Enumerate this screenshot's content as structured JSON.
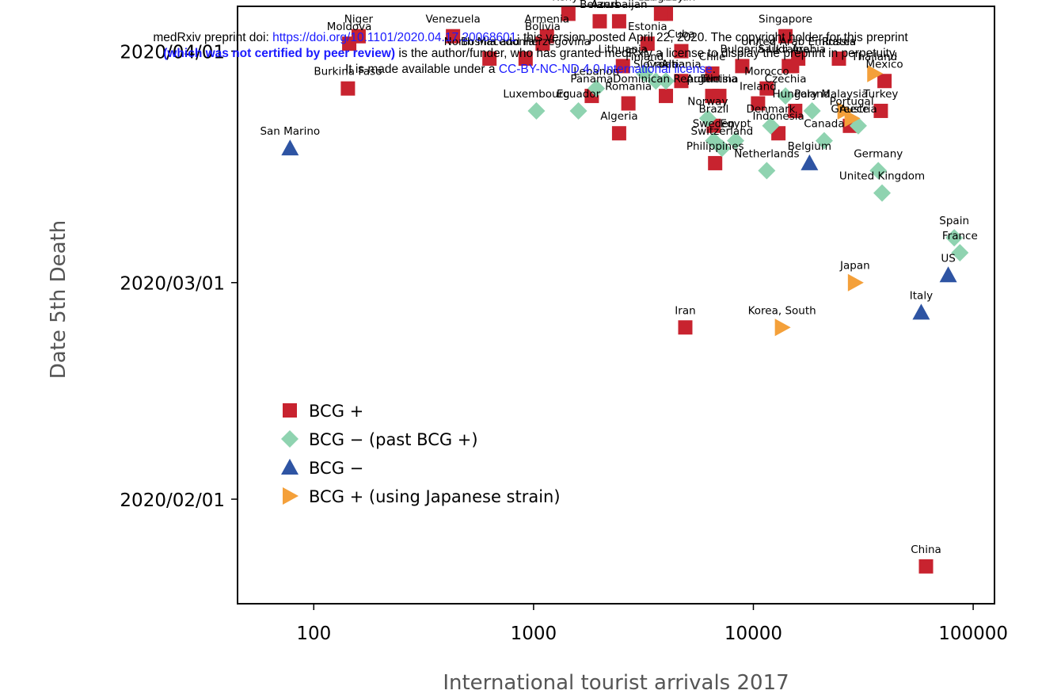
{
  "preprint": {
    "line1_prefix": "medRxiv preprint doi: ",
    "doi_link": "https://doi.org/10.1101/2020.04.17.20068601",
    "line1_suffix": "; this version posted April 22, 2020. The copyright holder for this preprint",
    "line2_bold": "(which was not certified by peer review)",
    "line2_suffix": " is the author/funder, who has granted medRxiv a license to display the preprint in perpetuity.",
    "line3_prefix": "It is made available under a ",
    "license_link": "CC-BY-NC-ND 4.0 International license",
    "line3_suffix": "."
  },
  "chart_data": {
    "type": "scatter",
    "xlabel": "International tourist arrivals 2017",
    "ylabel": "Date 5th Death",
    "xscale": "log",
    "xlim": [
      45,
      125000
    ],
    "ylim": [
      "2020-01-18",
      "2020-04-07"
    ],
    "xticks": [
      100,
      1000,
      10000,
      100000
    ],
    "xtick_labels": [
      "100",
      "1000",
      "10000",
      "100000"
    ],
    "yticks": [
      "2020-02-01",
      "2020-03-01",
      "2020-04-01"
    ],
    "ytick_labels": [
      "2020/02/01",
      "2020/03/01",
      "2020/04/01"
    ],
    "legend_position": "bottom-left",
    "series": [
      {
        "name": "BCG +",
        "marker": "square",
        "color": "#c8232f",
        "points": [
          {
            "label": "Burkina Faso",
            "x": 143,
            "y": "2020-03-27"
          },
          {
            "label": "Moldova",
            "x": 145,
            "y": "2020-04-02"
          },
          {
            "label": "Niger",
            "x": 160,
            "y": "2020-04-03"
          },
          {
            "label": "Venezuela",
            "x": 430,
            "y": "2020-04-03"
          },
          {
            "label": "North Macedonia",
            "x": 630,
            "y": "2020-03-31"
          },
          {
            "label": "Bosnia and Herzegovina",
            "x": 920,
            "y": "2020-03-31"
          },
          {
            "label": "Armenia",
            "x": 1150,
            "y": "2020-04-03"
          },
          {
            "label": "Bolivia",
            "x": 1100,
            "y": "2020-04-02"
          },
          {
            "label": "Kenya",
            "x": 1440,
            "y": "2020-04-06"
          },
          {
            "label": "Panama",
            "x": 1840,
            "y": "2020-03-26"
          },
          {
            "label": "Belarus",
            "x": 2000,
            "y": "2020-04-05"
          },
          {
            "label": "Azerbaijan",
            "x": 2450,
            "y": "2020-04-05"
          },
          {
            "label": "Algeria",
            "x": 2450,
            "y": "2020-03-21"
          },
          {
            "label": "Lithuania",
            "x": 2550,
            "y": "2020-03-30"
          },
          {
            "label": "Romania",
            "x": 2700,
            "y": "2020-03-25"
          },
          {
            "label": "Estonia",
            "x": 3300,
            "y": "2020-04-02"
          },
          {
            "label": "Dominican Republic",
            "x": 4000,
            "y": "2020-03-26"
          },
          {
            "label": "Uzbekistan",
            "x": 4000,
            "y": "2020-04-06"
          },
          {
            "label": "Uruguay",
            "x": 3800,
            "y": "2020-04-06"
          },
          {
            "label": "Cuba",
            "x": 4700,
            "y": "2020-04-01"
          },
          {
            "label": "Albania",
            "x": 4700,
            "y": "2020-03-28"
          },
          {
            "label": "Iran",
            "x": 4900,
            "y": "2020-02-24"
          },
          {
            "label": "Argentina",
            "x": 6500,
            "y": "2020-03-26"
          },
          {
            "label": "Tunisia",
            "x": 7000,
            "y": "2020-03-26"
          },
          {
            "label": "Chile",
            "x": 6500,
            "y": "2020-03-29"
          },
          {
            "label": "Brazil",
            "x": 6600,
            "y": "2020-03-22"
          },
          {
            "label": "Philippines",
            "x": 6700,
            "y": "2020-03-17"
          },
          {
            "label": "Bulgaria",
            "x": 8900,
            "y": "2020-03-30"
          },
          {
            "label": "Ireland",
            "x": 10500,
            "y": "2020-03-25"
          },
          {
            "label": "Morocco",
            "x": 11500,
            "y": "2020-03-27"
          },
          {
            "label": "Ukraine",
            "x": 14500,
            "y": "2020-03-30"
          },
          {
            "label": "Indonesia",
            "x": 13000,
            "y": "2020-03-21"
          },
          {
            "label": "Hungary",
            "x": 15500,
            "y": "2020-03-24"
          },
          {
            "label": "Singapore",
            "x": 14000,
            "y": "2020-04-03"
          },
          {
            "label": "United Arab Emirates",
            "x": 16000,
            "y": "2020-03-31"
          },
          {
            "label": "Saudi Arabia",
            "x": 15000,
            "y": "2020-03-30"
          },
          {
            "label": "Russia",
            "x": 24500,
            "y": "2020-03-31"
          },
          {
            "label": "Greece",
            "x": 27500,
            "y": "2020-03-22"
          },
          {
            "label": "Mexico",
            "x": 39500,
            "y": "2020-03-28"
          },
          {
            "label": "Turkey",
            "x": 38000,
            "y": "2020-03-24"
          },
          {
            "label": "China",
            "x": 61000,
            "y": "2020-01-23"
          }
        ]
      },
      {
        "name": "BCG − (past BCG +)",
        "marker": "diamond",
        "color": "#8fd3b0",
        "points": [
          {
            "label": "Luxembourg",
            "x": 1030,
            "y": "2020-03-24"
          },
          {
            "label": "Ecuador",
            "x": 1600,
            "y": "2020-03-24"
          },
          {
            "label": "Lebanon",
            "x": 1930,
            "y": "2020-03-27"
          },
          {
            "label": "Finland",
            "x": 3200,
            "y": "2020-03-29"
          },
          {
            "label": "Slovakia",
            "x": 3600,
            "y": "2020-03-28"
          },
          {
            "label": "Croatia",
            "x": 4000,
            "y": "2020-03-28"
          },
          {
            "label": "Norway",
            "x": 6200,
            "y": "2020-03-23"
          },
          {
            "label": "Sweden",
            "x": 6600,
            "y": "2020-03-20"
          },
          {
            "label": "Switzerland",
            "x": 7200,
            "y": "2020-03-19"
          },
          {
            "label": "Egypt",
            "x": 8300,
            "y": "2020-03-20"
          },
          {
            "label": "Denmark",
            "x": 12000,
            "y": "2020-03-22"
          },
          {
            "label": "Czechia",
            "x": 14000,
            "y": "2020-03-26"
          },
          {
            "label": "Netherlands",
            "x": 11500,
            "y": "2020-03-16"
          },
          {
            "label": "Canada",
            "x": 21000,
            "y": "2020-03-20"
          },
          {
            "label": "Poland",
            "x": 18500,
            "y": "2020-03-24"
          },
          {
            "label": "Austria",
            "x": 30000,
            "y": "2020-03-22"
          },
          {
            "label": "Germany",
            "x": 37000,
            "y": "2020-03-16"
          },
          {
            "label": "United Kingdom",
            "x": 38500,
            "y": "2020-03-13"
          },
          {
            "label": "Spain",
            "x": 82000,
            "y": "2020-03-07"
          },
          {
            "label": "France",
            "x": 87000,
            "y": "2020-03-05"
          }
        ]
      },
      {
        "name": "BCG −",
        "marker": "triangle-up",
        "color": "#2e54a3",
        "points": [
          {
            "label": "San Marino",
            "x": 78,
            "y": "2020-03-19"
          },
          {
            "label": "Belgium",
            "x": 18000,
            "y": "2020-03-17"
          },
          {
            "label": "Italy",
            "x": 58000,
            "y": "2020-02-26"
          },
          {
            "label": "US",
            "x": 77000,
            "y": "2020-03-02"
          }
        ]
      },
      {
        "name": "BCG + (using Japanese strain)",
        "marker": "triangle-right",
        "color": "#f4a03a",
        "points": [
          {
            "label": "Korea, South",
            "x": 13500,
            "y": "2020-02-24"
          },
          {
            "label": "Japan",
            "x": 29000,
            "y": "2020-03-01"
          },
          {
            "label": "Thailand",
            "x": 35500,
            "y": "2020-03-29"
          },
          {
            "label": "Malaysia",
            "x": 26000,
            "y": "2020-03-24"
          },
          {
            "label": "Portugal",
            "x": 28000,
            "y": "2020-03-23"
          }
        ]
      }
    ]
  }
}
